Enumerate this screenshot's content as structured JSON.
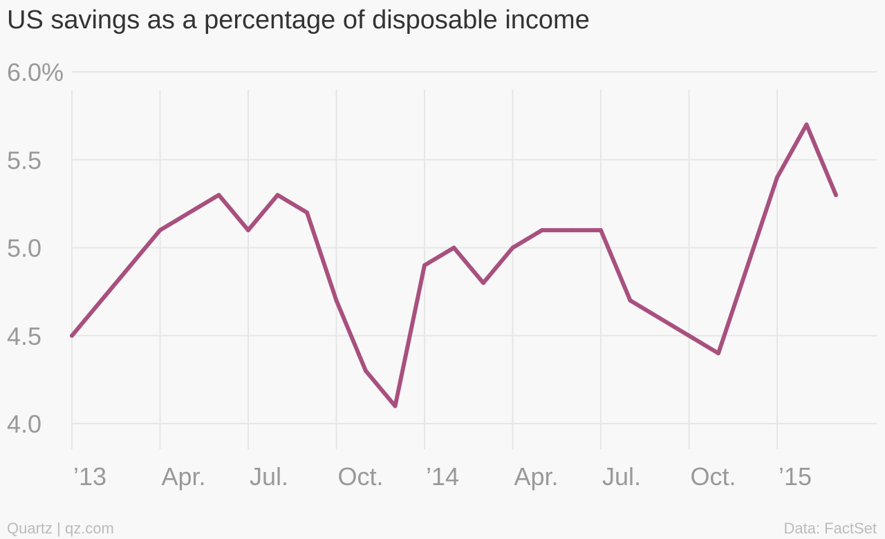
{
  "chart_data": {
    "type": "line",
    "title": "US savings as a percentage of disposable income",
    "xlabel": "",
    "ylabel": "",
    "ylim": [
      4.0,
      6.0
    ],
    "y_ticks": [
      {
        "value": 6.0,
        "label": "6.0%"
      },
      {
        "value": 5.5,
        "label": "5.5"
      },
      {
        "value": 5.0,
        "label": "5.0"
      },
      {
        "value": 4.5,
        "label": "4.5"
      },
      {
        "value": 4.0,
        "label": "4.0"
      }
    ],
    "x_ticks": [
      {
        "month": 0,
        "label": "’13"
      },
      {
        "month": 3,
        "label": "Apr."
      },
      {
        "month": 6,
        "label": "Jul."
      },
      {
        "month": 9,
        "label": "Oct."
      },
      {
        "month": 12,
        "label": "’14"
      },
      {
        "month": 15,
        "label": "Apr."
      },
      {
        "month": 18,
        "label": "Jul."
      },
      {
        "month": 21,
        "label": "Oct."
      },
      {
        "month": 24,
        "label": "’15"
      }
    ],
    "grid": true,
    "series": [
      {
        "color": "#a8507e",
        "x": [
          "2013-01",
          "2013-02",
          "2013-03",
          "2013-04",
          "2013-05",
          "2013-06",
          "2013-07",
          "2013-08",
          "2013-09",
          "2013-10",
          "2013-11",
          "2013-12",
          "2014-01",
          "2014-02",
          "2014-03",
          "2014-04",
          "2014-05",
          "2014-06",
          "2014-07",
          "2014-08",
          "2014-09",
          "2014-10",
          "2014-11",
          "2014-12",
          "2015-01",
          "2015-02",
          "2015-03"
        ],
        "values": [
          4.5,
          4.7,
          4.9,
          5.1,
          5.2,
          5.3,
          5.1,
          5.3,
          5.2,
          4.7,
          4.3,
          4.1,
          4.9,
          5.0,
          4.8,
          5.0,
          5.1,
          5.1,
          5.1,
          4.7,
          4.6,
          4.5,
          4.4,
          4.9,
          5.4,
          5.7,
          5.3
        ]
      }
    ]
  },
  "footer": {
    "source_left": "Quartz | qz.com",
    "source_right": "Data: FactSet"
  },
  "colors": {
    "line": "#a8507e",
    "grid": "#e6e6e6",
    "axis_text": "#999999",
    "title": "#333333",
    "footer": "#bbbbbb"
  }
}
